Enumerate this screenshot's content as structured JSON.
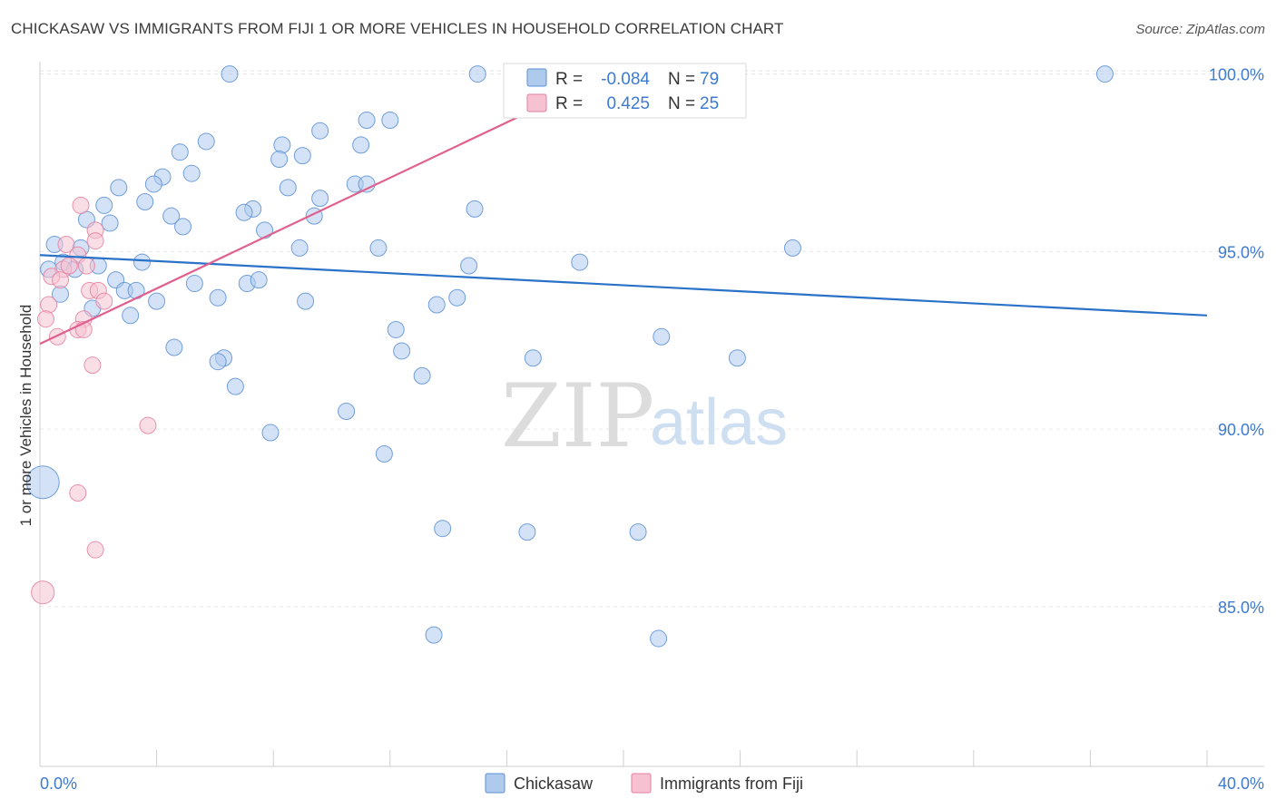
{
  "title": "CHICKASAW VS IMMIGRANTS FROM FIJI 1 OR MORE VEHICLES IN HOUSEHOLD CORRELATION CHART",
  "source": "Source: ZipAtlas.com",
  "watermark": {
    "zip": "ZIP",
    "atlas": "atlas"
  },
  "colors": {
    "blue_fill": "#aecbee",
    "blue_stroke": "#5b8fd4",
    "blue_line": "#2a72c8",
    "pink_fill": "#f6c2d1",
    "pink_stroke": "#e57fa0",
    "pink_line": "#e0608f",
    "tick_blue": "#3d7ad1",
    "grid": "#e6e6e6"
  },
  "legend": {
    "rows": [
      {
        "r_label": "R = ",
        "r_value": "-0.084",
        "n_label": "N = ",
        "n_value": "79"
      },
      {
        "r_label": "R = ",
        "r_value": "0.425",
        "n_label": "N = ",
        "n_value": "25"
      }
    ]
  },
  "chart_data": {
    "type": "scatter",
    "title": "CHICKASAW VS IMMIGRANTS FROM FIJI 1 OR MORE VEHICLES IN HOUSEHOLD CORRELATION CHART",
    "xlabel": "",
    "ylabel": "1 or more Vehicles in Household",
    "xlim": [
      0,
      40
    ],
    "ylim": [
      80.5,
      100.5
    ],
    "x_ticks": [
      {
        "value": 0,
        "label": "0.0%"
      },
      {
        "value": 40,
        "label": "40.0%"
      }
    ],
    "y_ticks": [
      {
        "value": 85,
        "label": "85.0%"
      },
      {
        "value": 90,
        "label": "90.0%"
      },
      {
        "value": 95,
        "label": "95.0%"
      },
      {
        "value": 100,
        "label": "100.0%"
      }
    ],
    "grid": true,
    "legend_position": "top-center",
    "series": [
      {
        "name": "Chickasaw",
        "color": "#aecbee",
        "R": -0.084,
        "N": 79,
        "trend": {
          "x": [
            0,
            40
          ],
          "y": [
            94.9,
            93.2
          ]
        },
        "points": [
          {
            "x": 6.5,
            "y": 100.0,
            "size": 1
          },
          {
            "x": 15.0,
            "y": 100.0,
            "size": 1
          },
          {
            "x": 36.5,
            "y": 100.0,
            "size": 1
          },
          {
            "x": 9.6,
            "y": 98.4,
            "size": 1
          },
          {
            "x": 11.2,
            "y": 98.7,
            "size": 1
          },
          {
            "x": 12.0,
            "y": 98.7,
            "size": 1
          },
          {
            "x": 5.7,
            "y": 98.1,
            "size": 1
          },
          {
            "x": 8.3,
            "y": 98.0,
            "size": 1
          },
          {
            "x": 11.0,
            "y": 98.0,
            "size": 1
          },
          {
            "x": 4.8,
            "y": 97.8,
            "size": 1
          },
          {
            "x": 8.2,
            "y": 97.6,
            "size": 1
          },
          {
            "x": 9.0,
            "y": 97.7,
            "size": 1
          },
          {
            "x": 5.2,
            "y": 97.2,
            "size": 1
          },
          {
            "x": 4.2,
            "y": 97.1,
            "size": 1
          },
          {
            "x": 3.9,
            "y": 96.9,
            "size": 1
          },
          {
            "x": 2.7,
            "y": 96.8,
            "size": 1
          },
          {
            "x": 8.5,
            "y": 96.8,
            "size": 1
          },
          {
            "x": 10.8,
            "y": 96.9,
            "size": 1
          },
          {
            "x": 11.2,
            "y": 96.9,
            "size": 1
          },
          {
            "x": 9.6,
            "y": 96.5,
            "size": 1
          },
          {
            "x": 3.6,
            "y": 96.4,
            "size": 1
          },
          {
            "x": 2.2,
            "y": 96.3,
            "size": 1
          },
          {
            "x": 7.3,
            "y": 96.2,
            "size": 1
          },
          {
            "x": 7.0,
            "y": 96.1,
            "size": 1
          },
          {
            "x": 14.9,
            "y": 96.2,
            "size": 1
          },
          {
            "x": 1.6,
            "y": 95.9,
            "size": 1
          },
          {
            "x": 4.5,
            "y": 96.0,
            "size": 1
          },
          {
            "x": 9.4,
            "y": 96.0,
            "size": 1
          },
          {
            "x": 2.4,
            "y": 95.8,
            "size": 1
          },
          {
            "x": 4.9,
            "y": 95.7,
            "size": 1
          },
          {
            "x": 7.7,
            "y": 95.6,
            "size": 1
          },
          {
            "x": 0.5,
            "y": 95.2,
            "size": 1
          },
          {
            "x": 1.4,
            "y": 95.1,
            "size": 1
          },
          {
            "x": 8.9,
            "y": 95.1,
            "size": 1
          },
          {
            "x": 11.6,
            "y": 95.1,
            "size": 1
          },
          {
            "x": 25.8,
            "y": 95.1,
            "size": 1
          },
          {
            "x": 0.3,
            "y": 94.5,
            "size": 1
          },
          {
            "x": 0.8,
            "y": 94.7,
            "size": 1
          },
          {
            "x": 1.2,
            "y": 94.5,
            "size": 1
          },
          {
            "x": 2.0,
            "y": 94.6,
            "size": 1
          },
          {
            "x": 3.5,
            "y": 94.7,
            "size": 1
          },
          {
            "x": 14.7,
            "y": 94.6,
            "size": 1
          },
          {
            "x": 18.5,
            "y": 94.7,
            "size": 1
          },
          {
            "x": 2.6,
            "y": 94.2,
            "size": 1
          },
          {
            "x": 5.3,
            "y": 94.1,
            "size": 1
          },
          {
            "x": 7.1,
            "y": 94.1,
            "size": 1
          },
          {
            "x": 7.5,
            "y": 94.2,
            "size": 1
          },
          {
            "x": 0.7,
            "y": 93.8,
            "size": 1
          },
          {
            "x": 2.9,
            "y": 93.9,
            "size": 1
          },
          {
            "x": 3.3,
            "y": 93.9,
            "size": 1
          },
          {
            "x": 6.1,
            "y": 93.7,
            "size": 1
          },
          {
            "x": 4.0,
            "y": 93.6,
            "size": 1
          },
          {
            "x": 9.1,
            "y": 93.6,
            "size": 1
          },
          {
            "x": 14.3,
            "y": 93.7,
            "size": 1
          },
          {
            "x": 13.6,
            "y": 93.5,
            "size": 1
          },
          {
            "x": 1.8,
            "y": 93.4,
            "size": 1
          },
          {
            "x": 3.1,
            "y": 93.2,
            "size": 1
          },
          {
            "x": 12.2,
            "y": 92.8,
            "size": 1
          },
          {
            "x": 21.3,
            "y": 92.6,
            "size": 1
          },
          {
            "x": 4.6,
            "y": 92.3,
            "size": 1
          },
          {
            "x": 12.4,
            "y": 92.2,
            "size": 1
          },
          {
            "x": 6.3,
            "y": 92.0,
            "size": 1
          },
          {
            "x": 6.1,
            "y": 91.9,
            "size": 1
          },
          {
            "x": 16.9,
            "y": 92.0,
            "size": 1
          },
          {
            "x": 23.9,
            "y": 92.0,
            "size": 1
          },
          {
            "x": 13.1,
            "y": 91.5,
            "size": 1
          },
          {
            "x": 6.7,
            "y": 91.2,
            "size": 1
          },
          {
            "x": 10.5,
            "y": 90.5,
            "size": 1
          },
          {
            "x": 7.9,
            "y": 89.9,
            "size": 1
          },
          {
            "x": 11.8,
            "y": 89.3,
            "size": 1
          },
          {
            "x": 0.1,
            "y": 88.5,
            "size": 3
          },
          {
            "x": 13.8,
            "y": 87.2,
            "size": 1
          },
          {
            "x": 16.7,
            "y": 87.1,
            "size": 1
          },
          {
            "x": 20.5,
            "y": 87.1,
            "size": 1
          },
          {
            "x": 13.5,
            "y": 84.2,
            "size": 1
          },
          {
            "x": 21.2,
            "y": 84.1,
            "size": 1
          }
        ]
      },
      {
        "name": "Immigrants from Fiji",
        "color": "#f6c2d1",
        "R": 0.425,
        "N": 25,
        "trend": {
          "x": [
            0,
            19.5
          ],
          "y": [
            92.4,
            100.0
          ]
        },
        "points": [
          {
            "x": 18.0,
            "y": 100.0,
            "size": 1
          },
          {
            "x": 1.4,
            "y": 96.3,
            "size": 1
          },
          {
            "x": 1.9,
            "y": 95.6,
            "size": 1
          },
          {
            "x": 1.9,
            "y": 95.3,
            "size": 1
          },
          {
            "x": 0.9,
            "y": 95.2,
            "size": 1
          },
          {
            "x": 1.3,
            "y": 94.9,
            "size": 1
          },
          {
            "x": 1.6,
            "y": 94.6,
            "size": 1
          },
          {
            "x": 0.8,
            "y": 94.5,
            "size": 1
          },
          {
            "x": 0.4,
            "y": 94.3,
            "size": 1
          },
          {
            "x": 0.7,
            "y": 94.2,
            "size": 1
          },
          {
            "x": 1.7,
            "y": 93.9,
            "size": 1
          },
          {
            "x": 2.0,
            "y": 93.9,
            "size": 1
          },
          {
            "x": 2.2,
            "y": 93.6,
            "size": 1
          },
          {
            "x": 0.3,
            "y": 93.5,
            "size": 1
          },
          {
            "x": 0.2,
            "y": 93.1,
            "size": 1
          },
          {
            "x": 1.5,
            "y": 93.1,
            "size": 1
          },
          {
            "x": 1.3,
            "y": 92.8,
            "size": 1
          },
          {
            "x": 1.5,
            "y": 92.8,
            "size": 1
          },
          {
            "x": 0.6,
            "y": 92.6,
            "size": 1
          },
          {
            "x": 1.8,
            "y": 91.8,
            "size": 1
          },
          {
            "x": 3.7,
            "y": 90.1,
            "size": 1
          },
          {
            "x": 1.3,
            "y": 88.2,
            "size": 1
          },
          {
            "x": 1.9,
            "y": 86.6,
            "size": 1
          },
          {
            "x": 0.1,
            "y": 85.4,
            "size": 2
          },
          {
            "x": 1.0,
            "y": 94.6,
            "size": 1
          }
        ]
      }
    ]
  }
}
